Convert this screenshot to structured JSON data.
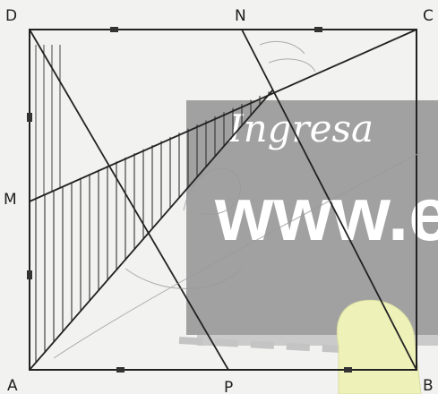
{
  "labels": {
    "D": "D",
    "N": "N",
    "C": "C",
    "M": "M",
    "A": "A",
    "P": "P",
    "B": "B"
  },
  "watermark": {
    "line1": "Ingresa",
    "line2": "www.el"
  },
  "colors": {
    "ink": "#222222",
    "paper": "#f2f2f0",
    "watermark_box": "#9a9a9a",
    "watermark_text": "#ffffff",
    "highlight": "#eef2b8"
  }
}
